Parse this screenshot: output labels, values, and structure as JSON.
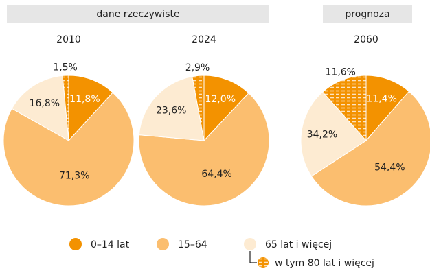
{
  "headers": [
    "dane rzeczywiste",
    "prognoza"
  ],
  "chart_data": [
    {
      "type": "pie",
      "title": "2010",
      "categories": [
        "0–14 lat",
        "15–64",
        "65 lat i więcej"
      ],
      "values": [
        11.8,
        71.3,
        16.8
      ],
      "value_labels": [
        "11,8%",
        "71,3%",
        "16,8%"
      ],
      "colors": [
        "#f39200",
        "#fbbe6f",
        "#fdebd2"
      ],
      "sub": {
        "name": "w tym 80 lat i więcej",
        "value": 1.5,
        "value_label": "1,5%"
      }
    },
    {
      "type": "pie",
      "title": "2024",
      "categories": [
        "0–14 lat",
        "15–64",
        "65 lat i więcej"
      ],
      "values": [
        12.0,
        64.4,
        23.6
      ],
      "value_labels": [
        "12,0%",
        "64,4%",
        "23,6%"
      ],
      "colors": [
        "#f39200",
        "#fbbe6f",
        "#fdebd2"
      ],
      "sub": {
        "name": "w tym 80 lat i więcej",
        "value": 2.9,
        "value_label": "2,9%"
      }
    },
    {
      "type": "pie",
      "title": "2060",
      "categories": [
        "0–14 lat",
        "15–64",
        "65 lat i więcej"
      ],
      "values": [
        11.4,
        54.4,
        34.2
      ],
      "value_labels": [
        "11,4%",
        "54,4%",
        "34,2%"
      ],
      "colors": [
        "#f39200",
        "#fbbe6f",
        "#fdebd2"
      ],
      "sub": {
        "name": "w tym 80 lat i więcej",
        "value": 11.6,
        "value_label": "11,6%"
      }
    }
  ]
}
